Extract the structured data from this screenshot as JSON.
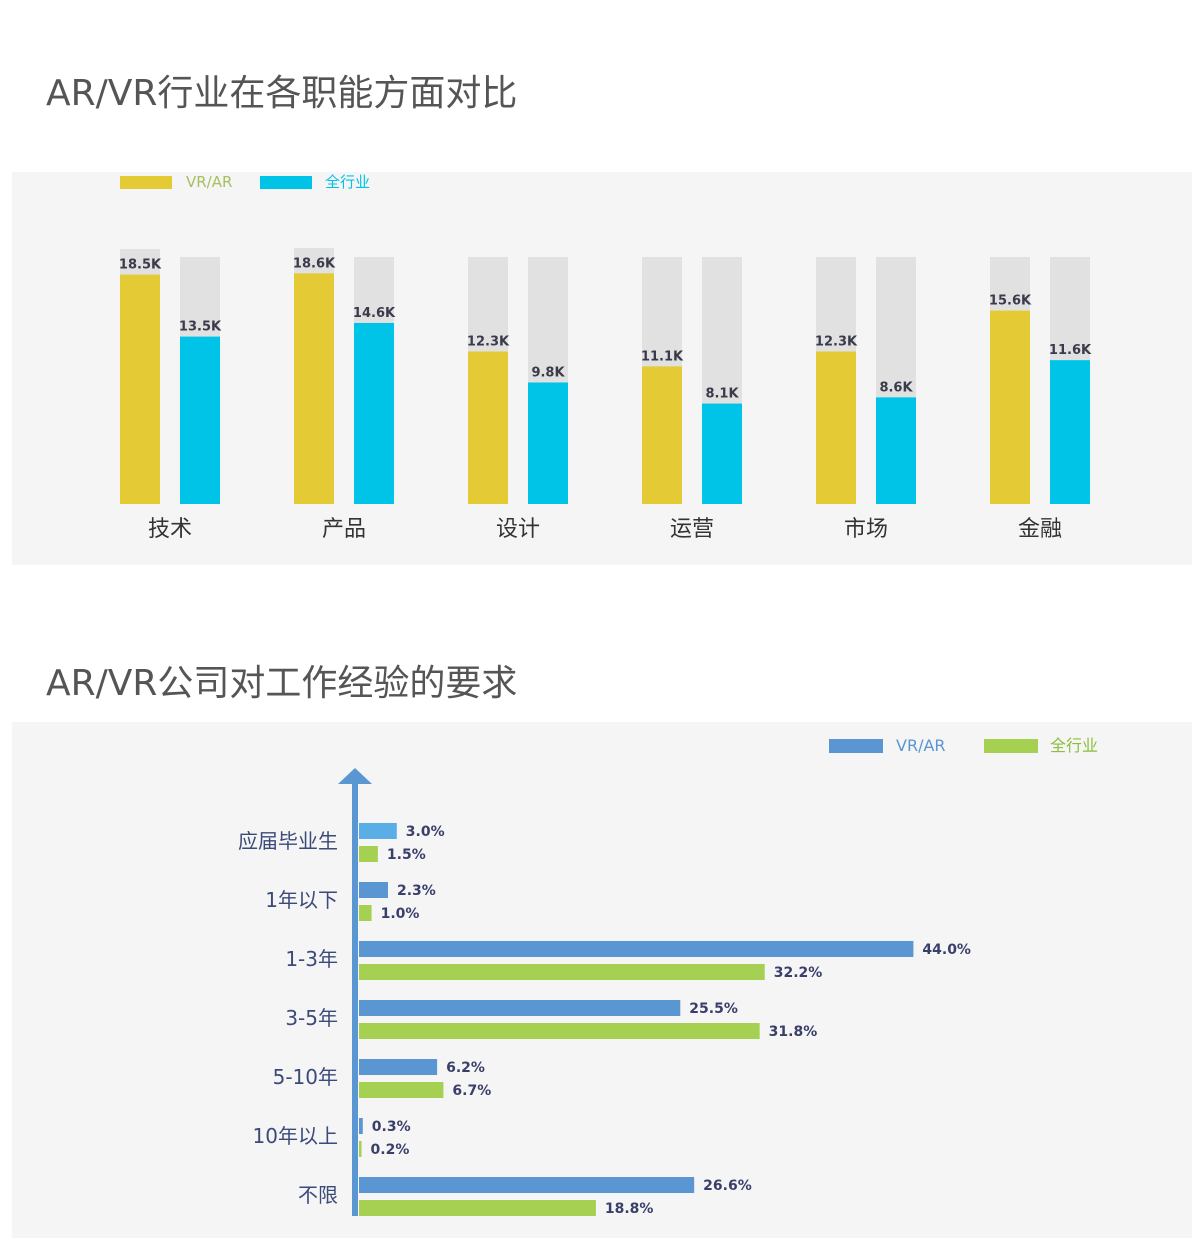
{
  "section1": {
    "title": "AR/VR行业在各职能方面对比"
  },
  "section2": {
    "title": "AR/VR公司对工作经验的要求"
  },
  "colors": {
    "vrar_yellow": "#e4cb35",
    "industry_cyan": "#00c3e8",
    "bar_background": "#e1e1e1",
    "vrar_blue": "#5a96d2",
    "vrar_blue_light": "#5aaee6",
    "industry_green": "#a6d052",
    "axis_blue": "#5a96d2"
  },
  "chart_data": [
    {
      "type": "bar",
      "title": "AR/VR行业在各职能方面对比",
      "categories": [
        "技术",
        "产品",
        "设计",
        "运营",
        "市场",
        "金融"
      ],
      "series": [
        {
          "name": "VR/AR",
          "values": [
            18.5,
            18.6,
            12.3,
            11.1,
            12.3,
            15.6
          ],
          "labels": [
            "18.5K",
            "18.6K",
            "12.3K",
            "11.1K",
            "12.3K",
            "15.6K"
          ]
        },
        {
          "name": "全行业",
          "values": [
            13.5,
            14.6,
            9.8,
            8.1,
            8.6,
            11.6
          ],
          "labels": [
            "13.5K",
            "14.6K",
            "9.8K",
            "8.1K",
            "8.6K",
            "11.6K"
          ]
        }
      ],
      "ylim": [
        0,
        20
      ],
      "legend": "top-left",
      "grid": false
    },
    {
      "type": "bar",
      "orientation": "horizontal",
      "title": "AR/VR公司对工作经验的要求",
      "categories": [
        "应届毕业生",
        "1年以下",
        "1-3年",
        "3-5年",
        "5-10年",
        "10年以上",
        "不限"
      ],
      "series": [
        {
          "name": "VR/AR",
          "values": [
            3.0,
            2.3,
            44.0,
            25.5,
            6.2,
            0.3,
            26.6
          ],
          "labels": [
            "3.0%",
            "2.3%",
            "44.0%",
            "25.5%",
            "6.2%",
            "0.3%",
            "26.6%"
          ]
        },
        {
          "name": "全行业",
          "values": [
            1.5,
            1.0,
            32.2,
            31.8,
            6.7,
            0.2,
            18.8
          ],
          "labels": [
            "1.5%",
            "1.0%",
            "32.2%",
            "31.8%",
            "6.7%",
            "0.2%",
            "18.8%"
          ]
        }
      ],
      "xlim": [
        0,
        50
      ],
      "legend": "top-right",
      "grid": false
    }
  ]
}
